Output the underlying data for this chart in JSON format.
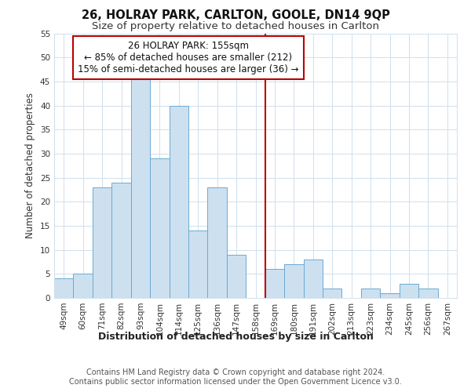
{
  "title": "26, HOLRAY PARK, CARLTON, GOOLE, DN14 9QP",
  "subtitle": "Size of property relative to detached houses in Carlton",
  "xlabel": "Distribution of detached houses by size in Carlton",
  "ylabel": "Number of detached properties",
  "bar_labels": [
    "49sqm",
    "60sqm",
    "71sqm",
    "82sqm",
    "93sqm",
    "104sqm",
    "114sqm",
    "125sqm",
    "136sqm",
    "147sqm",
    "158sqm",
    "169sqm",
    "180sqm",
    "191sqm",
    "202sqm",
    "213sqm",
    "223sqm",
    "234sqm",
    "245sqm",
    "256sqm",
    "267sqm"
  ],
  "bar_values": [
    4,
    5,
    23,
    24,
    46,
    29,
    40,
    14,
    23,
    9,
    0,
    6,
    7,
    8,
    2,
    0,
    2,
    1,
    3,
    2,
    0
  ],
  "bar_color": "#cde0f0",
  "bar_edge_color": "#6aaad4",
  "vline_x_index": 10.5,
  "vline_color": "#bb0000",
  "annotation_text": "26 HOLRAY PARK: 155sqm\n← 85% of detached houses are smaller (212)\n15% of semi-detached houses are larger (36) →",
  "annotation_box_edgecolor": "#bb0000",
  "annotation_box_facecolor": "#ffffff",
  "ylim": [
    0,
    55
  ],
  "yticks": [
    0,
    5,
    10,
    15,
    20,
    25,
    30,
    35,
    40,
    45,
    50,
    55
  ],
  "grid_color": "#d0e0ec",
  "footer1": "Contains HM Land Registry data © Crown copyright and database right 2024.",
  "footer2": "Contains public sector information licensed under the Open Government Licence v3.0.",
  "title_fontsize": 10.5,
  "subtitle_fontsize": 9.5,
  "xlabel_fontsize": 9,
  "ylabel_fontsize": 8.5,
  "tick_fontsize": 7.5,
  "annotation_fontsize": 8.5,
  "footer_fontsize": 7
}
